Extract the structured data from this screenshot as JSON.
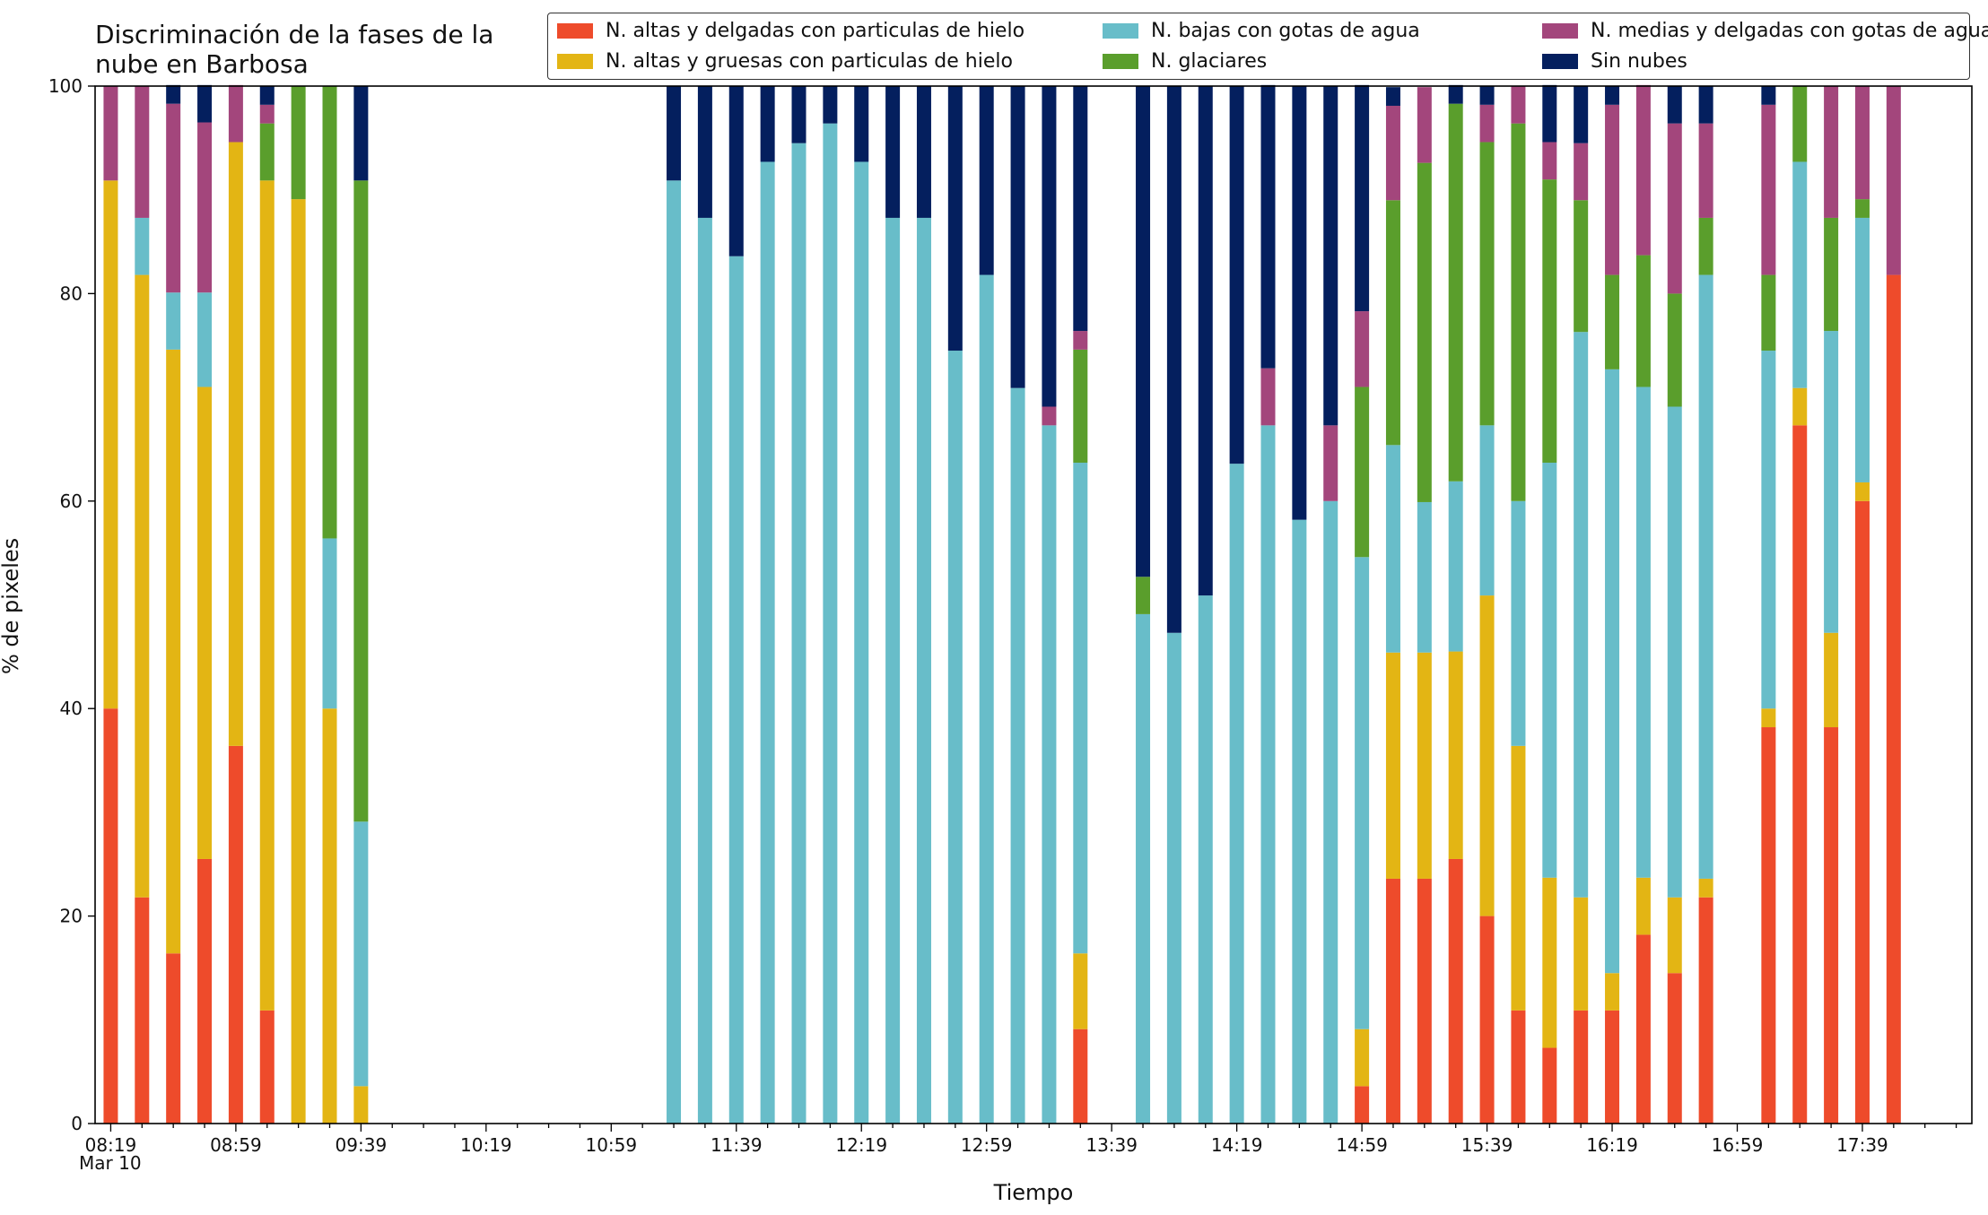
{
  "chart_data": {
    "type": "bar",
    "stacked": true,
    "title": "Discriminación de la fases de la\nnube en Barbosa",
    "xlabel": "Tiempo",
    "ylabel": "% de pixeles",
    "ylim": [
      0,
      100
    ],
    "yticks": [
      0,
      20,
      40,
      60,
      80,
      100
    ],
    "xlim": [
      "08:14",
      "18:14"
    ],
    "x_tick_interval_minutes": 10,
    "xtick_labels": [
      {
        "time": "08:19",
        "label": "08:19"
      },
      {
        "time": "08:59",
        "label": "08:59"
      },
      {
        "time": "09:39",
        "label": "09:39"
      },
      {
        "time": "10:19",
        "label": "10:19"
      },
      {
        "time": "10:59",
        "label": "10:59"
      },
      {
        "time": "11:39",
        "label": "11:39"
      },
      {
        "time": "12:19",
        "label": "12:19"
      },
      {
        "time": "12:59",
        "label": "12:59"
      },
      {
        "time": "13:39",
        "label": "13:39"
      },
      {
        "time": "14:19",
        "label": "14:19"
      },
      {
        "time": "14:59",
        "label": "14:59"
      },
      {
        "time": "15:39",
        "label": "15:39"
      },
      {
        "time": "16:19",
        "label": "16:19"
      },
      {
        "time": "16:59",
        "label": "16:59"
      },
      {
        "time": "17:39",
        "label": "17:39"
      }
    ],
    "date_label": "Mar 10",
    "legend_position": "top-right",
    "grid": false,
    "x": [
      "08:19",
      "08:29",
      "08:39",
      "08:49",
      "08:59",
      "09:09",
      "09:19",
      "09:29",
      "09:39",
      "11:19",
      "11:29",
      "11:39",
      "11:49",
      "11:59",
      "12:09",
      "12:19",
      "12:29",
      "12:39",
      "12:49",
      "12:59",
      "13:09",
      "13:19",
      "13:29",
      "13:49",
      "13:59",
      "14:09",
      "14:19",
      "14:29",
      "14:39",
      "14:49",
      "14:59",
      "15:09",
      "15:19",
      "15:29",
      "15:39",
      "15:49",
      "15:59",
      "16:09",
      "16:19",
      "16:29",
      "16:39",
      "16:49",
      "17:09",
      "17:19",
      "17:29",
      "17:39",
      "17:49"
    ],
    "series": [
      {
        "name": "N. altas y delgadas con particulas de hielo",
        "color": "#ee4b2b",
        "values": [
          40,
          21.8,
          16.4,
          25.5,
          36.4,
          10.9,
          0,
          0,
          0,
          0,
          0,
          0,
          0,
          0,
          0,
          0,
          0,
          0,
          0,
          0,
          0,
          0,
          9.1,
          0,
          0,
          0,
          0,
          0,
          0,
          0,
          3.6,
          23.6,
          23.6,
          25.5,
          20,
          10.9,
          7.3,
          10.9,
          10.9,
          18.2,
          14.5,
          21.8,
          38.2,
          67.3,
          38.2,
          60,
          81.8
        ]
      },
      {
        "name": "N. altas y gruesas con particulas de hielo",
        "color": "#e3b514",
        "values": [
          50.9,
          60,
          58.2,
          45.5,
          58.2,
          80,
          89.1,
          40,
          3.6,
          0,
          0,
          0,
          0,
          0,
          0,
          0,
          0,
          0,
          0,
          0,
          0,
          0,
          7.3,
          0,
          0,
          0,
          0,
          0,
          0,
          0,
          5.5,
          21.8,
          21.8,
          20,
          30.9,
          25.5,
          16.4,
          10.9,
          3.6,
          5.5,
          7.3,
          1.8,
          1.8,
          3.6,
          9.1,
          1.8,
          0
        ]
      },
      {
        "name": "N. bajas con gotas de agua",
        "color": "#68bdc9",
        "values": [
          0,
          5.5,
          5.5,
          9.1,
          0,
          0,
          0,
          16.4,
          25.5,
          90.9,
          87.3,
          83.6,
          92.7,
          94.5,
          96.4,
          92.7,
          87.3,
          87.3,
          74.5,
          81.8,
          70.9,
          67.3,
          47.3,
          49.1,
          47.3,
          50.9,
          63.6,
          67.3,
          58.2,
          60,
          45.5,
          20,
          14.5,
          16.4,
          16.4,
          23.6,
          40,
          54.5,
          58.2,
          47.3,
          47.3,
          58.2,
          34.5,
          21.8,
          29.1,
          25.5,
          0
        ]
      },
      {
        "name": "N. glaciares",
        "color": "#5a9e2c",
        "values": [
          0,
          0,
          0,
          0,
          0,
          5.5,
          10.9,
          43.6,
          61.8,
          0,
          0,
          0,
          0,
          0,
          0,
          0,
          0,
          0,
          0,
          0,
          0,
          0,
          10.9,
          3.6,
          0,
          0,
          0,
          0,
          0,
          0,
          16.4,
          23.6,
          32.7,
          36.4,
          27.3,
          36.4,
          27.3,
          12.7,
          9.1,
          12.7,
          10.9,
          5.5,
          7.3,
          7.3,
          10.9,
          1.8,
          0
        ]
      },
      {
        "name": "N. medias y delgadas con gotas de agua",
        "color": "#a3467c",
        "values": [
          9.1,
          12.7,
          18.2,
          16.4,
          5.5,
          1.8,
          0,
          0,
          0,
          0,
          0,
          0,
          0,
          0,
          0,
          0,
          0,
          0,
          0,
          0,
          0,
          1.8,
          1.8,
          0,
          0,
          0,
          0,
          5.5,
          0,
          7.3,
          7.3,
          9.1,
          7.3,
          0,
          3.6,
          3.6,
          3.6,
          5.5,
          16.4,
          16.4,
          16.4,
          9.1,
          16.4,
          0,
          12.7,
          10.9,
          18.2
        ]
      },
      {
        "name": "Sin nubes",
        "color": "#041f5e",
        "values": [
          0,
          0,
          1.8,
          3.6,
          0,
          1.8,
          0,
          0,
          9.1,
          9.1,
          12.7,
          16.4,
          7.3,
          5.5,
          3.6,
          7.3,
          12.7,
          12.7,
          25.5,
          18.2,
          29.1,
          30.9,
          23.6,
          47.3,
          52.7,
          49.1,
          36.4,
          27.3,
          41.8,
          32.7,
          21.8,
          1.8,
          0,
          1.8,
          1.8,
          0,
          5.5,
          5.5,
          1.8,
          0,
          3.6,
          3.6,
          1.8,
          0,
          0,
          0,
          0
        ]
      }
    ]
  }
}
